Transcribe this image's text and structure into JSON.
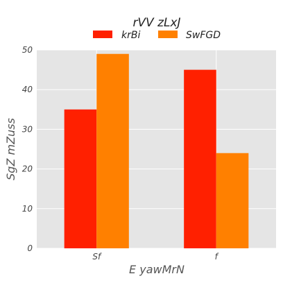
{
  "chart_data": {
    "type": "bar",
    "title": "rVV zLxJ",
    "xlabel": "E yawMrN",
    "ylabel": "SgZ mZuss",
    "categories": [
      "Sf",
      "f"
    ],
    "series": [
      {
        "name": "krBi",
        "values": [
          35,
          45
        ]
      },
      {
        "name": "SwFGD",
        "values": [
          49,
          24
        ]
      }
    ],
    "ylim": [
      0,
      50
    ],
    "yticks": [
      0,
      10,
      20,
      30,
      40,
      50
    ],
    "grid": true,
    "legend_position": "top-center",
    "colors": {
      "series": [
        "#ff2000",
        "#ff8000"
      ],
      "plot_background": "#e5e5e5",
      "grid": "#ffffff"
    }
  }
}
